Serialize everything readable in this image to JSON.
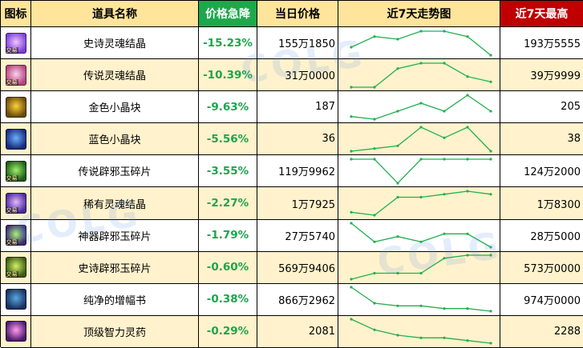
{
  "headers": {
    "icon": "图标",
    "name": "道具名称",
    "drop": "价格急降",
    "today": "当日价格",
    "trend": "近7天走势图",
    "high": "近7天最高"
  },
  "watermark": "COLG",
  "icons": [
    {
      "name": "epic-soul-crystal-icon",
      "badge": "交易",
      "c1": "#7b3fd6",
      "c2": "#f0c4ff"
    },
    {
      "name": "legendary-soul-crystal-icon",
      "badge": "交易",
      "c1": "#b0447c",
      "c2": "#ffd0ef"
    },
    {
      "name": "gold-crystal-block-icon",
      "badge": "",
      "c1": "#6b4a0a",
      "c2": "#ffd23a"
    },
    {
      "name": "blue-crystal-block-icon",
      "badge": "",
      "c1": "#1a2a7a",
      "c2": "#6ab0ff"
    },
    {
      "name": "legendary-jade-shard-icon",
      "badge": "交易",
      "c1": "#1f5a18",
      "c2": "#9cf06a"
    },
    {
      "name": "rare-soul-crystal-icon",
      "badge": "交易",
      "c1": "#4a2a9c",
      "c2": "#e3b8ff"
    },
    {
      "name": "artifact-jade-shard-icon",
      "badge": "交易",
      "c1": "#3c2a70",
      "c2": "#a8f07a"
    },
    {
      "name": "epic-jade-shard-icon",
      "badge": "交易",
      "c1": "#3a5a10",
      "c2": "#d0f06a"
    },
    {
      "name": "pure-amplification-scroll-icon",
      "badge": "",
      "c1": "#1a3060",
      "c2": "#58a8e0"
    },
    {
      "name": "top-intelligence-potion-icon",
      "badge": "",
      "c1": "#4a1a6a",
      "c2": "#ff9cf0"
    }
  ],
  "chart_data": {
    "type": "table",
    "columns": [
      "图标",
      "道具名称",
      "价格急降",
      "当日价格",
      "近7天走势图",
      "近7天最高"
    ],
    "rows": [
      {
        "name": "史诗灵魂结晶",
        "drop": "-15.23%",
        "today": "155万1850",
        "high": "193万5555",
        "trend": [
          4,
          8,
          7,
          10,
          10,
          8,
          1
        ]
      },
      {
        "name": "传说灵魂结晶",
        "drop": "-10.39%",
        "today": "31万0000",
        "high": "39万9999",
        "trend": [
          1,
          1,
          8,
          10,
          10,
          5,
          3
        ]
      },
      {
        "name": "金色小晶块",
        "drop": "-9.63%",
        "today": "187",
        "high": "205",
        "trend": [
          2,
          1,
          4,
          7,
          4,
          10,
          4
        ]
      },
      {
        "name": "蓝色小晶块",
        "drop": "-5.56%",
        "today": "36",
        "high": "38",
        "trend": [
          1,
          2,
          3,
          10,
          6,
          10,
          1
        ]
      },
      {
        "name": "传说辟邪玉碎片",
        "drop": "-3.55%",
        "today": "119万9962",
        "high": "124万2000",
        "trend": [
          10,
          10,
          3,
          10,
          10,
          10,
          10
        ]
      },
      {
        "name": "稀有灵魂结晶",
        "drop": "-2.27%",
        "today": "1万7925",
        "high": "1万8300",
        "trend": [
          2,
          1,
          7,
          7,
          8,
          9,
          8
        ]
      },
      {
        "name": "神器辟邪玉碎片",
        "drop": "-1.79%",
        "today": "27万5740",
        "high": "28万5000",
        "trend": [
          10,
          3,
          5,
          3,
          6,
          6,
          1
        ]
      },
      {
        "name": "史诗辟邪玉碎片",
        "drop": "-0.60%",
        "today": "569万9406",
        "high": "573万0000",
        "trend": [
          2,
          4,
          4,
          4,
          9,
          10,
          10
        ]
      },
      {
        "name": "纯净的增幅书",
        "drop": "-0.38%",
        "today": "866万2962",
        "high": "974万0000",
        "trend": [
          10,
          4,
          3,
          3,
          2,
          2,
          1
        ]
      },
      {
        "name": "顶级智力灵药",
        "drop": "-0.29%",
        "today": "2081",
        "high": "2288",
        "trend": [
          10,
          6,
          4,
          3,
          3,
          2,
          1
        ]
      }
    ]
  }
}
